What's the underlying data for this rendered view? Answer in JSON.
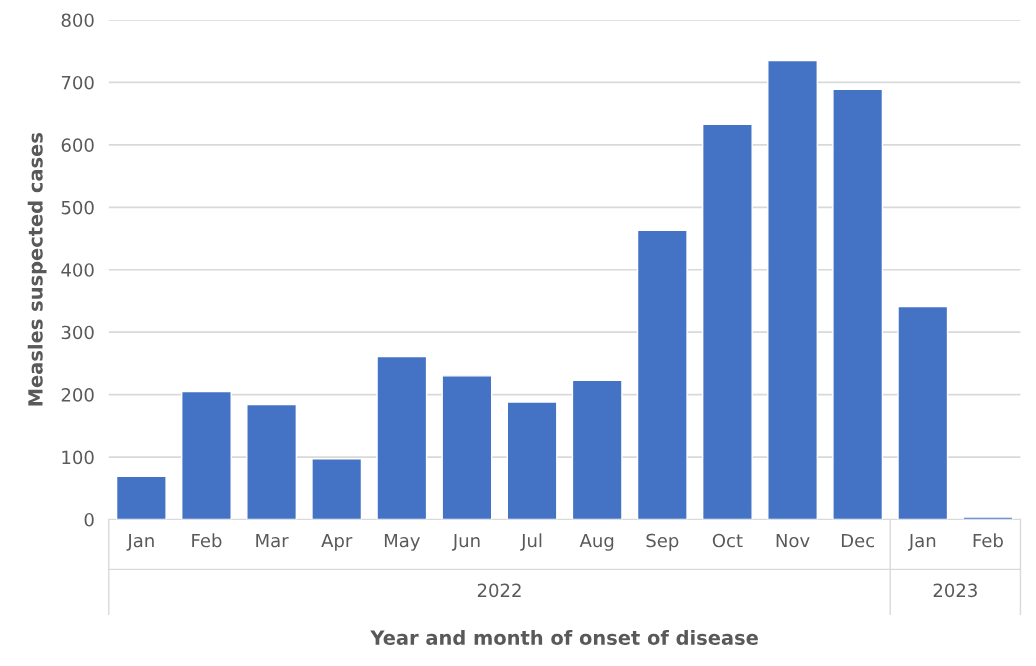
{
  "chart_data": {
    "type": "bar",
    "xlabel": "Year and month of onset of disease",
    "ylabel": "Measles suspected cases",
    "categories": [
      "Jan",
      "Feb",
      "Mar",
      "Apr",
      "May",
      "Jun",
      "Jul",
      "Aug",
      "Sep",
      "Oct",
      "Nov",
      "Dec",
      "Jan",
      "Feb"
    ],
    "values": [
      69,
      205,
      184,
      97,
      261,
      230,
      188,
      223,
      463,
      633,
      735,
      689,
      341,
      4
    ],
    "color": "#4472c4",
    "ylim": [
      0,
      800
    ],
    "yticks": [
      0,
      100,
      200,
      300,
      400,
      500,
      600,
      700,
      800
    ],
    "grid": "y",
    "annotations": [
      "2022",
      "2023"
    ]
  }
}
